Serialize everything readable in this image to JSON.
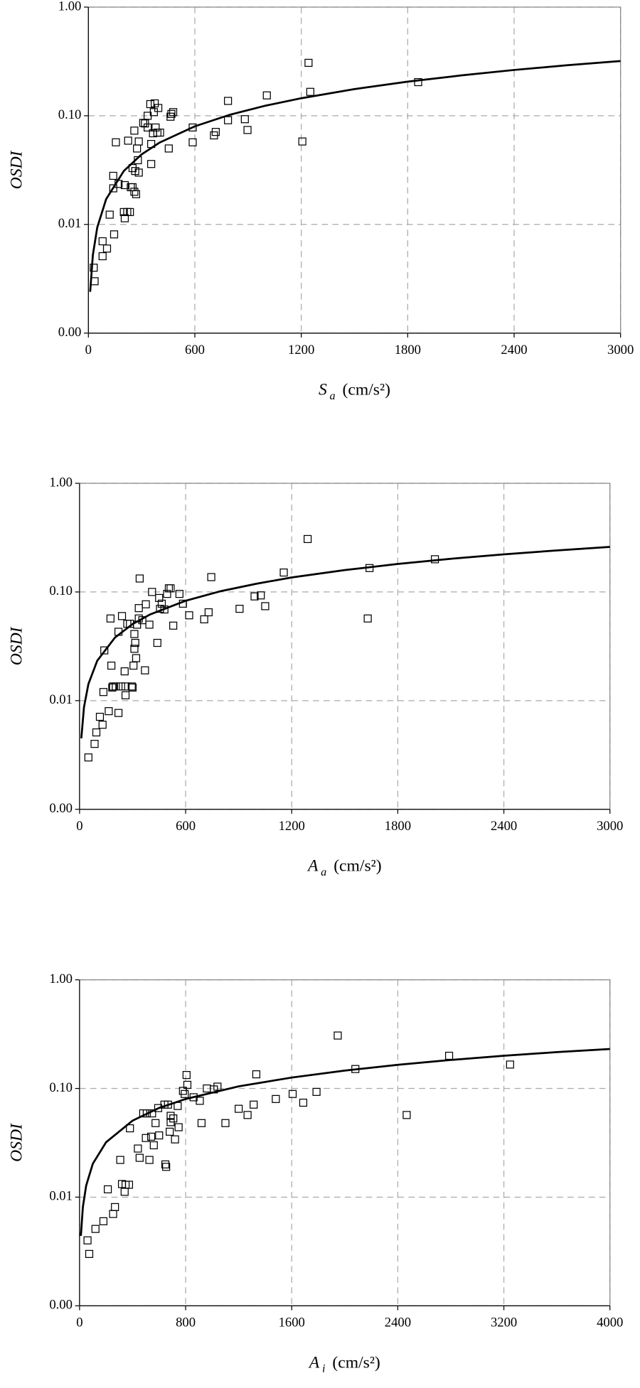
{
  "chart_data": [
    {
      "type": "scatter",
      "y_label": "OSDI",
      "x_label": {
        "symbol": "S",
        "subscript": "a",
        "unit": "(cm/s²)"
      },
      "xlim": [
        0,
        3000
      ],
      "xticks": [
        0,
        600,
        1200,
        1800,
        2400,
        3000
      ],
      "ylim": [
        0.001,
        1
      ],
      "yscale": "log",
      "yticks": [
        {
          "value": 0.001,
          "label": "0.00"
        },
        {
          "value": 0.01,
          "label": "0.01"
        },
        {
          "value": 0.1,
          "label": "0.10"
        },
        {
          "value": 1,
          "label": "1.00"
        }
      ],
      "grid": true,
      "series": [
        {
          "type": "scatter",
          "color": "#000000",
          "x": [
            35,
            30,
            80,
            80,
            105,
            120,
            145,
            140,
            140,
            155,
            170,
            200,
            205,
            205,
            219,
            224,
            234,
            239,
            249,
            249,
            259,
            259,
            264,
            269,
            274,
            279,
            284,
            284,
            309,
            319,
            334,
            334,
            349,
            354,
            354,
            364,
            369,
            374,
            379,
            389,
            394,
            404,
            453,
            463,
            468,
            478,
            588,
            588,
            708,
            718,
            787,
            787,
            882,
            897,
            1006,
            1206,
            1241,
            1251,
            1859
          ],
          "values": [
            0.003,
            0.004,
            0.0051,
            0.007,
            0.006,
            0.0123,
            0.0081,
            0.028,
            0.0215,
            0.057,
            0.0236,
            0.013,
            0.0114,
            0.023,
            0.013,
            0.059,
            0.013,
            0.022,
            0.022,
            0.033,
            0.073,
            0.02,
            0.031,
            0.019,
            0.05,
            0.039,
            0.058,
            0.03,
            0.086,
            0.085,
            0.078,
            0.1,
            0.128,
            0.036,
            0.055,
            0.069,
            0.108,
            0.13,
            0.078,
            0.07,
            0.118,
            0.07,
            0.05,
            0.098,
            0.104,
            0.108,
            0.078,
            0.057,
            0.066,
            0.071,
            0.137,
            0.091,
            0.093,
            0.074,
            0.154,
            0.058,
            0.307,
            0.166,
            0.204
          ]
        },
        {
          "type": "line",
          "color": "#000000",
          "x": [
            10,
            25,
            50,
            100,
            200,
            300,
            400,
            600,
            800,
            1000,
            1200,
            1500,
            1800,
            2100,
            2400,
            2700,
            3000
          ],
          "values": [
            0.0024,
            0.0052,
            0.0094,
            0.0171,
            0.0311,
            0.0441,
            0.0565,
            0.08,
            0.1025,
            0.124,
            0.145,
            0.176,
            0.206,
            0.235,
            0.264,
            0.292,
            0.319
          ]
        }
      ]
    },
    {
      "type": "scatter",
      "y_label": "OSDI",
      "x_label": {
        "symbol": "A",
        "subscript": "a",
        "unit": "(cm/s²)"
      },
      "xlim": [
        0,
        3000
      ],
      "xticks": [
        0,
        600,
        1200,
        1800,
        2400,
        3000
      ],
      "ylim": [
        0.001,
        1
      ],
      "yscale": "log",
      "yticks": [
        {
          "value": 0.001,
          "label": "0.00"
        },
        {
          "value": 0.01,
          "label": "0.01"
        },
        {
          "value": 0.1,
          "label": "0.10"
        },
        {
          "value": 1,
          "label": "1.00"
        }
      ],
      "grid": true,
      "series": [
        {
          "type": "scatter",
          "color": "#000000",
          "x": [
            50,
            85,
            95,
            115,
            130,
            135,
            140,
            165,
            175,
            180,
            185,
            190,
            205,
            220,
            220,
            235,
            240,
            255,
            260,
            260,
            270,
            285,
            295,
            300,
            305,
            310,
            310,
            320,
            315,
            325,
            335,
            335,
            340,
            355,
            370,
            375,
            395,
            410,
            440,
            450,
            455,
            465,
            480,
            495,
            505,
            515,
            530,
            565,
            585,
            620,
            705,
            730,
            745,
            905,
            990,
            1025,
            1050,
            1155,
            1290,
            1630,
            1640,
            2010
          ],
          "values": [
            0.003,
            0.004,
            0.0051,
            0.0071,
            0.006,
            0.012,
            0.029,
            0.008,
            0.057,
            0.021,
            0.0132,
            0.0135,
            0.0135,
            0.043,
            0.0077,
            0.0135,
            0.06,
            0.0186,
            0.0112,
            0.0135,
            0.051,
            0.051,
            0.0135,
            0.0132,
            0.021,
            0.03,
            0.041,
            0.0246,
            0.034,
            0.05,
            0.057,
            0.071,
            0.133,
            0.055,
            0.019,
            0.077,
            0.05,
            0.1,
            0.034,
            0.088,
            0.07,
            0.078,
            0.069,
            0.096,
            0.108,
            0.108,
            0.049,
            0.096,
            0.078,
            0.061,
            0.056,
            0.065,
            0.137,
            0.07,
            0.091,
            0.093,
            0.074,
            0.151,
            0.307,
            0.057,
            0.166,
            0.2
          ]
        },
        {
          "type": "line",
          "color": "#000000",
          "x": [
            10,
            25,
            50,
            100,
            200,
            300,
            400,
            600,
            800,
            1000,
            1200,
            1500,
            1800,
            2100,
            2400,
            2700,
            3000
          ],
          "values": [
            0.0045,
            0.0087,
            0.0142,
            0.0233,
            0.038,
            0.0507,
            0.0622,
            0.083,
            0.1018,
            0.119,
            0.136,
            0.159,
            0.181,
            0.202,
            0.222,
            0.241,
            0.26
          ]
        }
      ]
    },
    {
      "type": "scatter",
      "y_label": "OSDI",
      "x_label": {
        "symbol": "A",
        "subscript": "i",
        "unit": "(cm/s²)"
      },
      "xlim": [
        0,
        4000
      ],
      "xticks": [
        0,
        800,
        1600,
        2400,
        3200,
        4000
      ],
      "ylim": [
        0.001,
        1
      ],
      "yscale": "log",
      "yticks": [
        {
          "value": 0.001,
          "label": "0.00"
        },
        {
          "value": 0.01,
          "label": "0.01"
        },
        {
          "value": 0.1,
          "label": "0.10"
        },
        {
          "value": 1,
          "label": "1.00"
        }
      ],
      "grid": true,
      "series": [
        {
          "type": "scatter",
          "color": "#000000",
          "x": [
            73,
            60,
            120,
            180,
            213,
            253,
            267,
            307,
            320,
            340,
            347,
            373,
            380,
            440,
            453,
            480,
            500,
            507,
            527,
            540,
            547,
            560,
            573,
            593,
            600,
            640,
            647,
            653,
            667,
            680,
            687,
            687,
            707,
            720,
            740,
            747,
            780,
            793,
            807,
            813,
            860,
            907,
            920,
            960,
            1013,
            1040,
            1100,
            1200,
            1267,
            1313,
            1333,
            1480,
            1607,
            1687,
            1787,
            1947,
            2080,
            2467,
            2787,
            3247
          ],
          "values": [
            0.003,
            0.004,
            0.0051,
            0.006,
            0.0118,
            0.007,
            0.0081,
            0.022,
            0.0132,
            0.0112,
            0.013,
            0.013,
            0.043,
            0.028,
            0.023,
            0.059,
            0.035,
            0.059,
            0.022,
            0.036,
            0.059,
            0.03,
            0.048,
            0.066,
            0.037,
            0.071,
            0.02,
            0.019,
            0.071,
            0.04,
            0.049,
            0.056,
            0.053,
            0.034,
            0.069,
            0.044,
            0.095,
            0.089,
            0.133,
            0.108,
            0.083,
            0.077,
            0.048,
            0.1,
            0.098,
            0.104,
            0.048,
            0.065,
            0.057,
            0.071,
            0.135,
            0.08,
            0.089,
            0.074,
            0.093,
            0.307,
            0.151,
            0.057,
            0.2,
            0.166
          ]
        },
        {
          "type": "line",
          "color": "#000000",
          "x": [
            10,
            25,
            50,
            100,
            200,
            400,
            600,
            800,
            1200,
            1600,
            2000,
            2400,
            2800,
            3200,
            3600,
            4000
          ],
          "values": [
            0.0044,
            0.0081,
            0.0128,
            0.0203,
            0.032,
            0.0506,
            0.0662,
            0.08,
            0.1046,
            0.126,
            0.146,
            0.165,
            0.183,
            0.2,
            0.216,
            0.231
          ]
        }
      ]
    }
  ]
}
